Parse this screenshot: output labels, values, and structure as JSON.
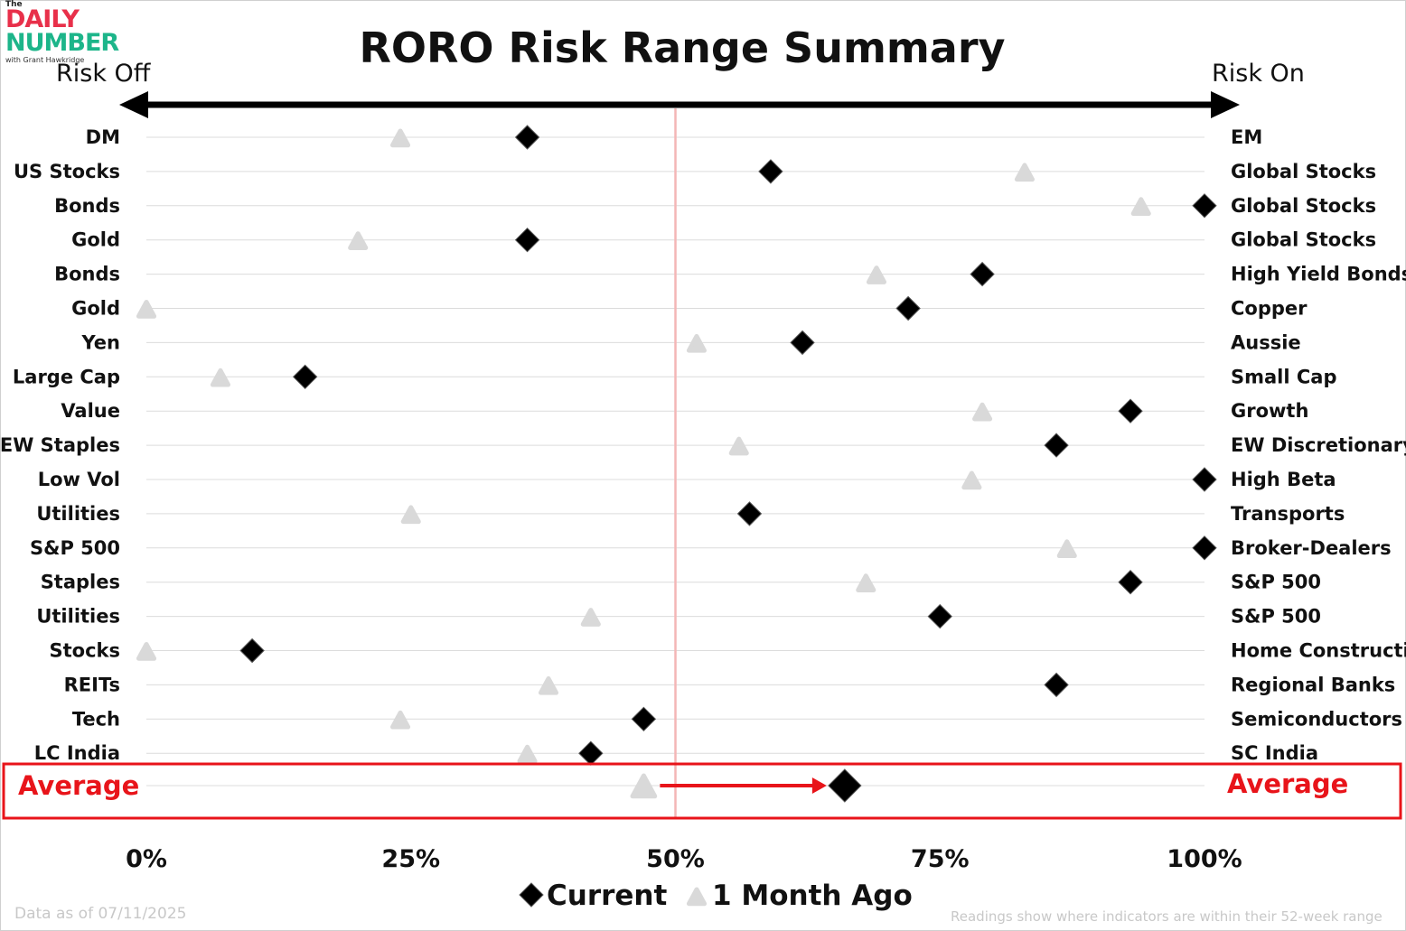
{
  "logo": {
    "the": "The",
    "daily": "DAILY",
    "number": "NUMBER",
    "byline": "with Grant Hawkridge"
  },
  "chart_data": {
    "type": "scatter",
    "title": "RORO Risk Range Summary",
    "left_label": "Risk Off",
    "right_label": "Risk On",
    "x_ticks": [
      "0%",
      "25%",
      "50%",
      "75%",
      "100%"
    ],
    "xlim": [
      0,
      100
    ],
    "reference_line": 50,
    "legend": [
      "Current",
      "1 Month Ago"
    ],
    "legend_position": "bottom-center",
    "series": [
      {
        "name": "Current",
        "marker": "diamond",
        "color": "#000000"
      },
      {
        "name": "1 Month Ago",
        "marker": "triangle",
        "color": "#d9d9d9"
      }
    ],
    "rows": [
      {
        "left": "DM",
        "right": "EM",
        "current": 36,
        "month_ago": 24
      },
      {
        "left": "US Stocks",
        "right": "Global Stocks",
        "current": 59,
        "month_ago": 83
      },
      {
        "left": "Bonds",
        "right": "Global Stocks",
        "current": 100,
        "month_ago": 94
      },
      {
        "left": "Gold",
        "right": "Global Stocks",
        "current": 36,
        "month_ago": 20
      },
      {
        "left": "Bonds",
        "right": "High Yield Bonds",
        "current": 79,
        "month_ago": 69
      },
      {
        "left": "Gold",
        "right": "Copper",
        "current": 72,
        "month_ago": 0
      },
      {
        "left": "Yen",
        "right": "Aussie",
        "current": 62,
        "month_ago": 52
      },
      {
        "left": "Large Cap",
        "right": "Small Cap",
        "current": 15,
        "month_ago": 7
      },
      {
        "left": "Value",
        "right": "Growth",
        "current": 93,
        "month_ago": 79
      },
      {
        "left": "EW Staples",
        "right": "EW Discretionary",
        "current": 86,
        "month_ago": 56
      },
      {
        "left": "Low Vol",
        "right": "High Beta",
        "current": 100,
        "month_ago": 78
      },
      {
        "left": "Utilities",
        "right": "Transports",
        "current": 57,
        "month_ago": 25
      },
      {
        "left": "S&P 500",
        "right": "Broker-Dealers",
        "current": 100,
        "month_ago": 87
      },
      {
        "left": "Staples",
        "right": "S&P 500",
        "current": 93,
        "month_ago": 68
      },
      {
        "left": "Utilities",
        "right": "S&P 500",
        "current": 75,
        "month_ago": 42
      },
      {
        "left": "Stocks",
        "right": "Home Construction",
        "current": 10,
        "month_ago": 0
      },
      {
        "left": "REITs",
        "right": "Regional Banks",
        "current": 86,
        "month_ago": 38
      },
      {
        "left": "Tech",
        "right": "Semiconductors",
        "current": 47,
        "month_ago": 24
      },
      {
        "left": "LC India",
        "right": "SC India",
        "current": 42,
        "month_ago": 36
      }
    ],
    "average": {
      "left": "Average",
      "right": "Average",
      "current": 66,
      "month_ago": 47
    }
  },
  "colors": {
    "current": "#000000",
    "month_ago": "#d9d9d9",
    "average_highlight": "#e8141a",
    "midline": "#f4b6b6",
    "gridline": "#dcdcdc"
  },
  "footer": {
    "data_date": "Data as of 07/11/2025",
    "readings_note": "Readings show where indicators are within their 52-week range"
  }
}
